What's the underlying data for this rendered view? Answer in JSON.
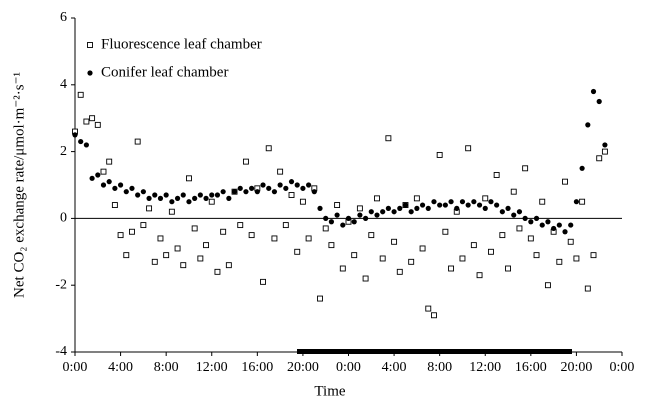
{
  "chart_data": {
    "type": "scatter",
    "y_label": "Net CO₂ exchange rate/μmol·m⁻²·s⁻¹",
    "x_label": "Time",
    "xlim": [
      0,
      48
    ],
    "xticks": [
      {
        "value": 0,
        "label": "0:00"
      },
      {
        "value": 4,
        "label": "4:00"
      },
      {
        "value": 8,
        "label": "8:00"
      },
      {
        "value": 12,
        "label": "12:00"
      },
      {
        "value": 16,
        "label": "16:00"
      },
      {
        "value": 20,
        "label": "20:00"
      },
      {
        "value": 24,
        "label": "0:00"
      },
      {
        "value": 28,
        "label": "4:00"
      },
      {
        "value": 32,
        "label": "8:00"
      },
      {
        "value": 36,
        "label": "12:00"
      },
      {
        "value": 40,
        "label": "16:00"
      },
      {
        "value": 44,
        "label": "20:00"
      },
      {
        "value": 48,
        "label": "0:00"
      }
    ],
    "ylim": [
      -4,
      6
    ],
    "yticks": [
      -4,
      -2,
      0,
      2,
      4,
      6
    ],
    "legend": "upper left",
    "x": [
      0,
      0.5,
      1,
      1.5,
      2,
      2.5,
      3,
      3.5,
      4,
      4.5,
      5,
      5.5,
      6,
      6.5,
      7,
      7.5,
      8,
      8.5,
      9,
      9.5,
      10,
      10.5,
      11,
      11.5,
      12,
      12.5,
      13,
      13.5,
      14,
      14.5,
      15,
      15.5,
      16,
      16.5,
      17,
      17.5,
      18,
      18.5,
      19,
      19.5,
      20,
      20.5,
      21,
      21.5,
      22,
      22.5,
      23,
      23.5,
      24,
      24.5,
      25,
      25.5,
      26,
      26.5,
      27,
      27.5,
      28,
      28.5,
      29,
      29.5,
      30,
      30.5,
      31,
      31.5,
      32,
      32.5,
      33,
      33.5,
      34,
      34.5,
      35,
      35.5,
      36,
      36.5,
      37,
      37.5,
      38,
      38.5,
      39,
      39.5,
      40,
      40.5,
      41,
      41.5,
      42,
      42.5,
      43,
      43.5,
      44,
      44.5,
      45,
      45.5,
      46,
      46.5
    ],
    "series": [
      {
        "name": "Fluorescence leaf chamber",
        "color": "#000000",
        "marker": "square",
        "values": [
          2.6,
          3.7,
          2.9,
          3.0,
          2.8,
          1.4,
          1.7,
          0.4,
          -0.5,
          -1.1,
          -0.4,
          2.3,
          -0.2,
          0.3,
          -1.3,
          -0.6,
          -1.1,
          0.2,
          -0.9,
          -1.4,
          1.2,
          -0.3,
          -1.2,
          -0.8,
          0.5,
          -1.6,
          -0.4,
          -1.4,
          0.8,
          -0.2,
          1.7,
          -0.5,
          0.9,
          -1.9,
          2.1,
          -0.6,
          1.4,
          -0.2,
          0.7,
          -1.0,
          0.5,
          -0.6,
          0.9,
          -2.4,
          -0.3,
          -0.8,
          0.4,
          -1.5,
          -0.1,
          -1.1,
          0.3,
          -1.8,
          -0.5,
          0.6,
          -1.2,
          2.4,
          -0.7,
          -1.6,
          0.4,
          -1.3,
          0.6,
          -0.9,
          -2.7,
          -2.9,
          1.9,
          -0.4,
          -1.5,
          0.2,
          -1.2,
          2.1,
          -0.8,
          -1.7,
          0.6,
          -1.0,
          1.3,
          -0.5,
          -1.5,
          0.8,
          -0.3,
          1.5,
          -0.6,
          -1.1,
          0.5,
          -2.0,
          -0.4,
          -1.3,
          1.1,
          -0.7,
          -1.2,
          0.5,
          -2.1,
          -1.1,
          1.8,
          2.0
        ]
      },
      {
        "name": "Conifer leaf chamber",
        "color": "#000000",
        "marker": "circle",
        "values": [
          2.5,
          2.3,
          2.2,
          1.2,
          1.3,
          1.0,
          1.1,
          0.9,
          1.0,
          0.8,
          0.9,
          0.7,
          0.8,
          0.6,
          0.7,
          0.6,
          0.7,
          0.5,
          0.6,
          0.7,
          0.5,
          0.6,
          0.7,
          0.6,
          0.7,
          0.7,
          0.8,
          0.6,
          0.8,
          0.9,
          0.8,
          0.9,
          0.8,
          1.0,
          0.9,
          0.8,
          1.0,
          0.9,
          1.1,
          1.0,
          0.9,
          1.0,
          0.8,
          0.3,
          0.0,
          -0.1,
          0.1,
          -0.2,
          0.0,
          -0.1,
          0.1,
          0.0,
          0.2,
          0.1,
          0.2,
          0.3,
          0.2,
          0.3,
          0.4,
          0.2,
          0.3,
          0.4,
          0.3,
          0.5,
          0.4,
          0.4,
          0.5,
          0.3,
          0.5,
          0.4,
          0.5,
          0.4,
          0.3,
          0.5,
          0.4,
          0.2,
          0.3,
          0.1,
          0.2,
          0.0,
          -0.1,
          0.0,
          -0.2,
          -0.1,
          -0.3,
          -0.2,
          -0.4,
          -0.2,
          0.5,
          1.5,
          2.8,
          3.8,
          3.5,
          2.2
        ]
      }
    ]
  }
}
